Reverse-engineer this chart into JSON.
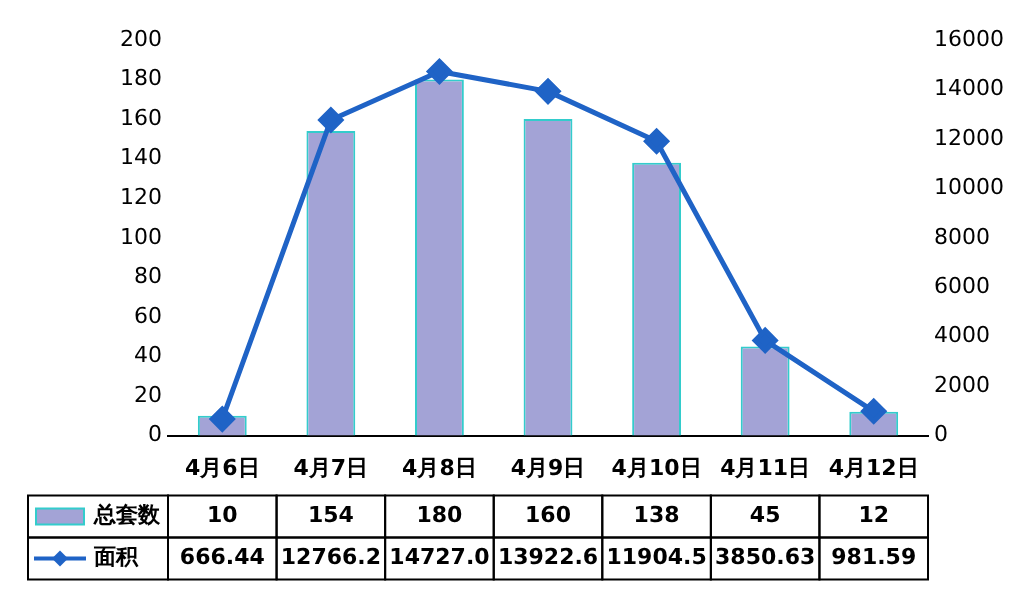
{
  "chart_data": {
    "type": "bar",
    "categories": [
      "4月6日",
      "4月7日",
      "4月8日",
      "4月9日",
      "4月10日",
      "4月11日",
      "4月12日"
    ],
    "series": [
      {
        "name": "总套数",
        "color": "#a3a3d6",
        "values": [
          10,
          154,
          180,
          160,
          138,
          45,
          12
        ],
        "value_labels": [
          "10",
          "154",
          "180",
          "160",
          "138",
          "45",
          "12"
        ]
      },
      {
        "name": "面积",
        "type": "line",
        "axis": "y2",
        "color": "#1f63c6",
        "marker": "diamond",
        "values": [
          666.44,
          12766.2,
          14727.0,
          13922.6,
          11904.5,
          3850.63,
          981.59
        ],
        "value_labels": [
          "666.44",
          "12766.2",
          "14727.0",
          "13922.6",
          "11904.5",
          "3850.63",
          "981.59"
        ]
      }
    ],
    "ylim": [
      0,
      200
    ],
    "yticks": [
      0,
      20,
      40,
      60,
      80,
      100,
      120,
      140,
      160,
      180,
      200
    ],
    "y2lim": [
      0,
      16000
    ],
    "y2ticks": [
      0,
      2000,
      4000,
      6000,
      8000,
      10000,
      12000,
      14000,
      16000
    ],
    "grid": false,
    "legend": "bottom left"
  }
}
